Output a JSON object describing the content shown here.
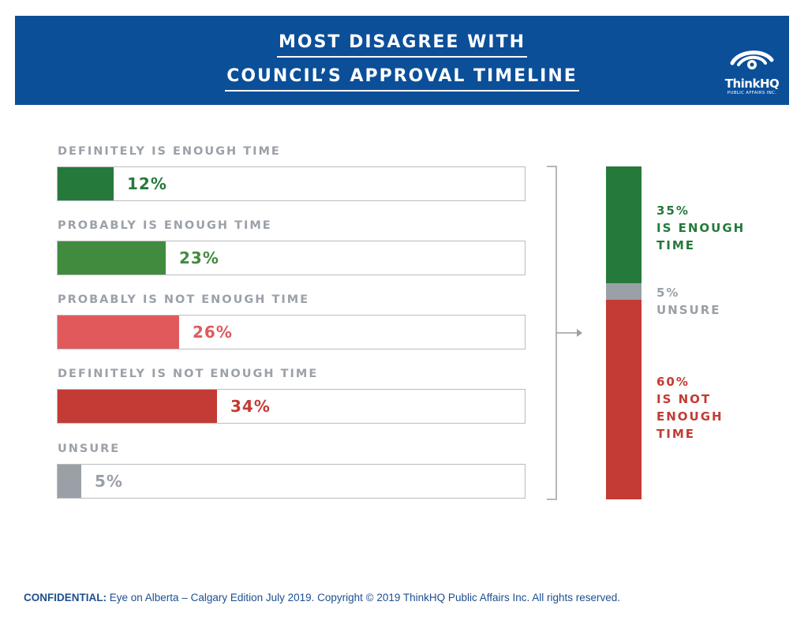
{
  "header": {
    "title_line1": "MOST DISAGREE WITH",
    "title_line2": "COUNCIL’S APPROVAL TIMELINE",
    "logo_name": "ThinkHQ",
    "logo_sub": "PUBLIC AFFAIRS INC."
  },
  "colors": {
    "header_bg": "#0b4f99",
    "dark_green": "#257a3b",
    "green": "#418b3f",
    "light_red": "#e05a5c",
    "red": "#c33b34",
    "grey": "#9aa0a6"
  },
  "chart_data": [
    {
      "type": "bar",
      "orientation": "horizontal",
      "categories": [
        "DEFINITELY IS ENOUGH TIME",
        "PROBABLY IS ENOUGH TIME",
        "PROBABLY IS NOT ENOUGH TIME",
        "DEFINITELY IS NOT ENOUGH TIME",
        "UNSURE"
      ],
      "values": [
        12,
        23,
        26,
        34,
        5
      ],
      "value_labels": [
        "12%",
        "23%",
        "26%",
        "34%",
        "5%"
      ],
      "bar_colors": [
        "#257a3b",
        "#418b3f",
        "#e05a5c",
        "#c33b34",
        "#9aa0a6"
      ],
      "xlim": [
        0,
        100
      ]
    },
    {
      "type": "bar",
      "orientation": "stacked-vertical",
      "categories": [
        "IS ENOUGH TIME",
        "UNSURE",
        "IS NOT ENOUGH TIME"
      ],
      "values": [
        35,
        5,
        60
      ],
      "labels": [
        "35%\nIS ENOUGH\nTIME",
        "5%\nUNSURE",
        "60%\nIS NOT\nENOUGH\nTIME"
      ],
      "colors": [
        "#257a3b",
        "#9aa0a6",
        "#c33b34"
      ]
    }
  ],
  "footer": {
    "prefix": "CONFIDENTIAL:",
    "text": " Eye on Alberta – Calgary Edition July 2019.  Copyright © 2019 ThinkHQ Public Affairs Inc. All rights reserved."
  }
}
